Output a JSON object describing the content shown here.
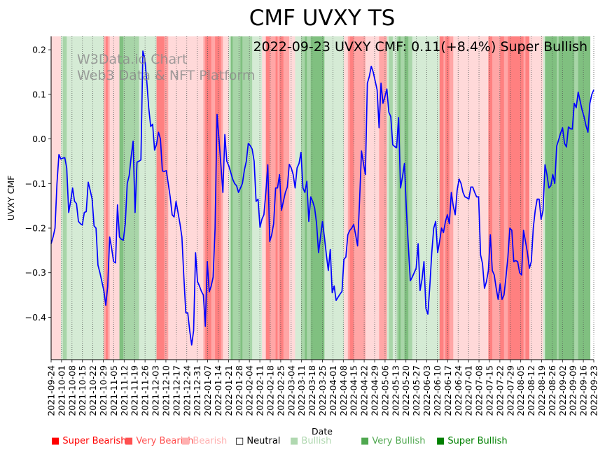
{
  "chart_data": {
    "type": "line",
    "title": "CMF UVXY TS",
    "annotation": "2022-09-23 UVXY CMF: 0.11(+8.4%) Super Bullish",
    "watermark_line1": "W3Data.io Chart",
    "watermark_line2": "Web3 Data & NFT Platform",
    "xlabel": "Date",
    "ylabel": "UVXY CMF",
    "ylim": [
      -0.495,
      0.23
    ],
    "yticks": [
      -0.4,
      -0.3,
      -0.2,
      -0.1,
      0.0,
      0.1,
      0.2
    ],
    "ytick_labels": [
      "−0.4",
      "−0.3",
      "−0.2",
      "−0.1",
      "0.0",
      "0.1",
      "0.2"
    ],
    "x_start": "2021-09-24",
    "x_end": "2022-09-23",
    "xtick_labels": [
      "2021-09-24",
      "2021-10-01",
      "2021-10-08",
      "2021-10-15",
      "2021-10-22",
      "2021-10-29",
      "2021-11-05",
      "2021-11-12",
      "2021-11-19",
      "2021-11-26",
      "2021-12-03",
      "2021-12-10",
      "2021-12-17",
      "2021-12-24",
      "2021-12-31",
      "2022-01-07",
      "2022-01-14",
      "2022-01-21",
      "2022-01-28",
      "2022-02-04",
      "2022-02-11",
      "2022-02-18",
      "2022-02-25",
      "2022-03-04",
      "2022-03-11",
      "2022-03-18",
      "2022-03-25",
      "2022-04-01",
      "2022-04-08",
      "2022-04-15",
      "2022-04-22",
      "2022-04-29",
      "2022-05-06",
      "2022-05-13",
      "2022-05-20",
      "2022-05-27",
      "2022-06-03",
      "2022-06-10",
      "2022-06-17",
      "2022-06-24",
      "2022-07-01",
      "2022-07-08",
      "2022-07-15",
      "2022-07-22",
      "2022-07-29",
      "2022-08-05",
      "2022-08-12",
      "2022-08-19",
      "2022-08-26",
      "2022-09-02",
      "2022-09-09",
      "2022-09-16",
      "2022-09-23"
    ],
    "line_color": "#0000ff",
    "series": [
      {
        "name": "UVXY CMF",
        "values": [
          -0.235,
          -0.22,
          -0.2,
          -0.1,
          -0.035,
          -0.045,
          -0.043,
          -0.042,
          -0.065,
          -0.165,
          -0.14,
          -0.11,
          -0.14,
          -0.145,
          -0.185,
          -0.19,
          -0.193,
          -0.165,
          -0.163,
          -0.097,
          -0.115,
          -0.135,
          -0.195,
          -0.2,
          -0.283,
          -0.3,
          -0.32,
          -0.34,
          -0.373,
          -0.33,
          -0.22,
          -0.245,
          -0.275,
          -0.278,
          -0.148,
          -0.22,
          -0.225,
          -0.227,
          -0.19,
          -0.1,
          -0.082,
          -0.04,
          -0.005,
          -0.165,
          -0.052,
          -0.05,
          -0.047,
          0.197,
          0.18,
          0.13,
          0.07,
          0.028,
          0.033,
          -0.025,
          -0.012,
          0.015,
          0.0,
          -0.072,
          -0.073,
          -0.071,
          -0.1,
          -0.13,
          -0.17,
          -0.175,
          -0.14,
          -0.165,
          -0.19,
          -0.22,
          -0.31,
          -0.39,
          -0.39,
          -0.43,
          -0.462,
          -0.43,
          -0.255,
          -0.32,
          -0.33,
          -0.342,
          -0.35,
          -0.42,
          -0.275,
          -0.343,
          -0.33,
          -0.31,
          -0.2,
          0.055,
          0.0,
          -0.06,
          -0.12,
          0.01,
          -0.05,
          -0.06,
          -0.075,
          -0.09,
          -0.1,
          -0.105,
          -0.12,
          -0.11,
          -0.1,
          -0.07,
          -0.05,
          -0.01,
          -0.015,
          -0.023,
          -0.05,
          -0.14,
          -0.135,
          -0.198,
          -0.18,
          -0.17,
          -0.12,
          -0.058,
          -0.23,
          -0.215,
          -0.19,
          -0.11,
          -0.11,
          -0.08,
          -0.16,
          -0.14,
          -0.12,
          -0.108,
          -0.057,
          -0.065,
          -0.08,
          -0.11,
          -0.065,
          -0.055,
          -0.03,
          -0.11,
          -0.12,
          -0.095,
          -0.185,
          -0.13,
          -0.14,
          -0.155,
          -0.19,
          -0.255,
          -0.22,
          -0.185,
          -0.22,
          -0.26,
          -0.295,
          -0.248,
          -0.345,
          -0.33,
          -0.362,
          -0.355,
          -0.348,
          -0.342,
          -0.27,
          -0.265,
          -0.215,
          -0.205,
          -0.2,
          -0.192,
          -0.215,
          -0.24,
          -0.14,
          -0.027,
          -0.055,
          -0.08,
          0.125,
          0.14,
          0.163,
          0.15,
          0.13,
          0.11,
          0.025,
          0.125,
          0.08,
          0.095,
          0.112,
          0.06,
          0.05,
          -0.013,
          -0.017,
          -0.02,
          0.048,
          -0.11,
          -0.085,
          -0.055,
          -0.16,
          -0.24,
          -0.318,
          -0.31,
          -0.3,
          -0.29,
          -0.235,
          -0.34,
          -0.315,
          -0.275,
          -0.38,
          -0.393,
          -0.33,
          -0.255,
          -0.2,
          -0.185,
          -0.255,
          -0.23,
          -0.2,
          -0.21,
          -0.185,
          -0.17,
          -0.19,
          -0.12,
          -0.15,
          -0.17,
          -0.115,
          -0.09,
          -0.1,
          -0.12,
          -0.13,
          -0.132,
          -0.135,
          -0.108,
          -0.108,
          -0.12,
          -0.13,
          -0.13,
          -0.26,
          -0.28,
          -0.335,
          -0.32,
          -0.295,
          -0.215,
          -0.295,
          -0.305,
          -0.335,
          -0.36,
          -0.325,
          -0.36,
          -0.35,
          -0.31,
          -0.265,
          -0.2,
          -0.205,
          -0.275,
          -0.273,
          -0.275,
          -0.3,
          -0.305,
          -0.205,
          -0.23,
          -0.255,
          -0.29,
          -0.275,
          -0.2,
          -0.16,
          -0.135,
          -0.135,
          -0.18,
          -0.16,
          -0.058,
          -0.08,
          -0.11,
          -0.105,
          -0.08,
          -0.1,
          -0.016,
          -0.002,
          0.013,
          0.025,
          -0.01,
          -0.018,
          0.027,
          0.023,
          0.022,
          0.08,
          0.07,
          0.105,
          0.085,
          0.065,
          0.05,
          0.03,
          0.015,
          0.08,
          0.1,
          0.11
        ]
      }
    ],
    "regime_colors": {
      "super_bearish": "#ff8080",
      "very_bearish": "#ffa6a6",
      "bearish": "#ffd9d9",
      "bullish": "#d5ebd5",
      "very_bullish": "#a8d5a8",
      "super_bullish": "#80c080"
    },
    "regime_bands": [
      {
        "from": 0,
        "to": 5,
        "regime": "bearish"
      },
      {
        "from": 5,
        "to": 6,
        "regime": "bullish"
      },
      {
        "from": 6,
        "to": 8,
        "regime": "very_bullish"
      },
      {
        "from": 8,
        "to": 27,
        "regime": "bullish"
      },
      {
        "from": 27,
        "to": 28,
        "regime": "very_bearish"
      },
      {
        "from": 28,
        "to": 29,
        "regime": "super_bearish"
      },
      {
        "from": 29,
        "to": 30,
        "regime": "very_bearish"
      },
      {
        "from": 30,
        "to": 35,
        "regime": "bearish"
      },
      {
        "from": 35,
        "to": 37,
        "regime": "super_bullish"
      },
      {
        "from": 37,
        "to": 45,
        "regime": "very_bullish"
      },
      {
        "from": 45,
        "to": 54,
        "regime": "bullish"
      },
      {
        "from": 54,
        "to": 58,
        "regime": "super_bearish"
      },
      {
        "from": 58,
        "to": 60,
        "regime": "very_bearish"
      },
      {
        "from": 60,
        "to": 78,
        "regime": "bearish"
      },
      {
        "from": 78,
        "to": 79,
        "regime": "very_bearish"
      },
      {
        "from": 79,
        "to": 82,
        "regime": "super_bearish"
      },
      {
        "from": 82,
        "to": 84,
        "regime": "very_bearish"
      },
      {
        "from": 84,
        "to": 87,
        "regime": "super_bearish"
      },
      {
        "from": 87,
        "to": 88,
        "regime": "very_bearish"
      },
      {
        "from": 88,
        "to": 91,
        "regime": "bearish"
      },
      {
        "from": 91,
        "to": 92,
        "regime": "bullish"
      },
      {
        "from": 92,
        "to": 93,
        "regime": "super_bullish"
      },
      {
        "from": 93,
        "to": 97,
        "regime": "very_bullish"
      },
      {
        "from": 97,
        "to": 98,
        "regime": "super_bullish"
      },
      {
        "from": 98,
        "to": 103,
        "regime": "very_bullish"
      },
      {
        "from": 103,
        "to": 108,
        "regime": "bullish"
      },
      {
        "from": 108,
        "to": 110,
        "regime": "bearish"
      },
      {
        "from": 110,
        "to": 112,
        "regime": "super_bearish"
      },
      {
        "from": 112,
        "to": 115,
        "regime": "very_bearish"
      },
      {
        "from": 115,
        "to": 116,
        "regime": "super_bearish"
      },
      {
        "from": 116,
        "to": 117,
        "regime": "very_bearish"
      },
      {
        "from": 117,
        "to": 119,
        "regime": "super_bearish"
      },
      {
        "from": 119,
        "to": 122,
        "regime": "very_bearish"
      },
      {
        "from": 122,
        "to": 125,
        "regime": "bearish"
      },
      {
        "from": 125,
        "to": 128,
        "regime": "bullish"
      },
      {
        "from": 128,
        "to": 130,
        "regime": "very_bullish"
      },
      {
        "from": 130,
        "to": 131,
        "regime": "super_bullish"
      },
      {
        "from": 131,
        "to": 133,
        "regime": "very_bullish"
      },
      {
        "from": 133,
        "to": 140,
        "regime": "super_bullish"
      },
      {
        "from": 140,
        "to": 150,
        "regime": "bullish"
      },
      {
        "from": 150,
        "to": 152,
        "regime": "bearish"
      },
      {
        "from": 152,
        "to": 153,
        "regime": "very_bearish"
      },
      {
        "from": 153,
        "to": 155,
        "regime": "super_bearish"
      },
      {
        "from": 155,
        "to": 161,
        "regime": "very_bearish"
      },
      {
        "from": 161,
        "to": 168,
        "regime": "bearish"
      },
      {
        "from": 168,
        "to": 172,
        "regime": "very_bearish"
      },
      {
        "from": 172,
        "to": 173,
        "regime": "bullish"
      },
      {
        "from": 173,
        "to": 175,
        "regime": "very_bullish"
      },
      {
        "from": 175,
        "to": 177,
        "regime": "bullish"
      },
      {
        "from": 177,
        "to": 178,
        "regime": "very_bullish"
      },
      {
        "from": 178,
        "to": 179,
        "regime": "super_bullish"
      },
      {
        "from": 179,
        "to": 181,
        "regime": "very_bullish"
      },
      {
        "from": 181,
        "to": 183,
        "regime": "super_bullish"
      },
      {
        "from": 183,
        "to": 185,
        "regime": "very_bullish"
      },
      {
        "from": 185,
        "to": 199,
        "regime": "bullish"
      },
      {
        "from": 199,
        "to": 201,
        "regime": "super_bearish"
      },
      {
        "from": 201,
        "to": 202,
        "regime": "very_bearish"
      },
      {
        "from": 202,
        "to": 204,
        "regime": "super_bearish"
      },
      {
        "from": 204,
        "to": 206,
        "regime": "very_bearish"
      },
      {
        "from": 206,
        "to": 224,
        "regime": "bearish"
      },
      {
        "from": 224,
        "to": 226,
        "regime": "super_bearish"
      },
      {
        "from": 226,
        "to": 230,
        "regime": "very_bearish"
      },
      {
        "from": 230,
        "to": 232,
        "regime": "super_bearish"
      },
      {
        "from": 232,
        "to": 234,
        "regime": "very_bearish"
      },
      {
        "from": 234,
        "to": 242,
        "regime": "super_bearish"
      },
      {
        "from": 242,
        "to": 243,
        "regime": "very_bearish"
      },
      {
        "from": 243,
        "to": 245,
        "regime": "super_bearish"
      },
      {
        "from": 245,
        "to": 252,
        "regime": "bearish"
      },
      {
        "from": 252,
        "to": 253,
        "regime": "bullish"
      },
      {
        "from": 253,
        "to": 259,
        "regime": "super_bullish"
      },
      {
        "from": 259,
        "to": 260,
        "regime": "very_bullish"
      },
      {
        "from": 260,
        "to": 268,
        "regime": "super_bullish"
      },
      {
        "from": 268,
        "to": 270,
        "regime": "very_bullish"
      },
      {
        "from": 270,
        "to": 276,
        "regime": "super_bullish"
      }
    ],
    "legend": [
      {
        "label": "Super Bearish",
        "color": "#ff0000"
      },
      {
        "label": "Very Bearish",
        "color": "#ff5050"
      },
      {
        "label": "Bearish",
        "color": "#ffb0b0"
      },
      {
        "label": "Neutral",
        "color": "#000000"
      },
      {
        "label": "Bullish",
        "color": "#b0d8b0"
      },
      {
        "label": "Very Bullish",
        "color": "#50a850"
      },
      {
        "label": "Super Bullish",
        "color": "#008000"
      }
    ],
    "legend_markers": {
      "filled": "■",
      "hollow": "□"
    }
  }
}
